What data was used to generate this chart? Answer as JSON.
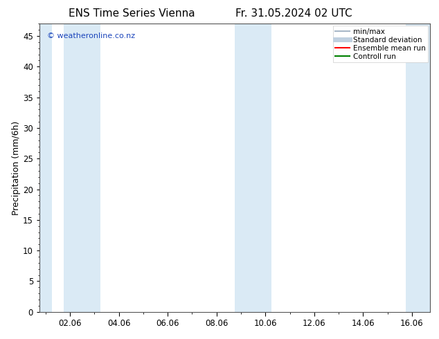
{
  "title_left": "ENS Time Series Vienna",
  "title_right": "Fr. 31.05.2024 02 UTC",
  "ylabel": "Precipitation (mm/6h)",
  "watermark": "© weatheronline.co.nz",
  "ylim": [
    0,
    47
  ],
  "yticks": [
    0,
    5,
    10,
    15,
    20,
    25,
    30,
    35,
    40,
    45
  ],
  "xlim": [
    -0.25,
    15.75
  ],
  "xtick_labels": [
    "02.06",
    "04.06",
    "06.06",
    "08.06",
    "10.06",
    "12.06",
    "14.06",
    "16.06"
  ],
  "xtick_positions": [
    1.0,
    3.0,
    5.0,
    7.0,
    9.0,
    11.0,
    13.0,
    15.0
  ],
  "blue_bands": [
    [
      -0.25,
      0.25
    ],
    [
      0.75,
      2.25
    ],
    [
      7.75,
      9.25
    ],
    [
      14.75,
      15.75
    ]
  ],
  "band_color": "#daeaf5",
  "background_color": "#ffffff",
  "legend_items": [
    {
      "label": "min/max",
      "color": "#a8b8c8",
      "lw": 1.5
    },
    {
      "label": "Standard deviation",
      "color": "#c0d0e0",
      "lw": 5
    },
    {
      "label": "Ensemble mean run",
      "color": "#ff0000",
      "lw": 1.5
    },
    {
      "label": "Controll run",
      "color": "#008000",
      "lw": 1.5
    }
  ],
  "title_fontsize": 11,
  "tick_fontsize": 8.5,
  "ylabel_fontsize": 9,
  "watermark_fontsize": 8,
  "watermark_color": "#1a44bb",
  "legend_fontsize": 7.5,
  "spine_color": "#555555"
}
